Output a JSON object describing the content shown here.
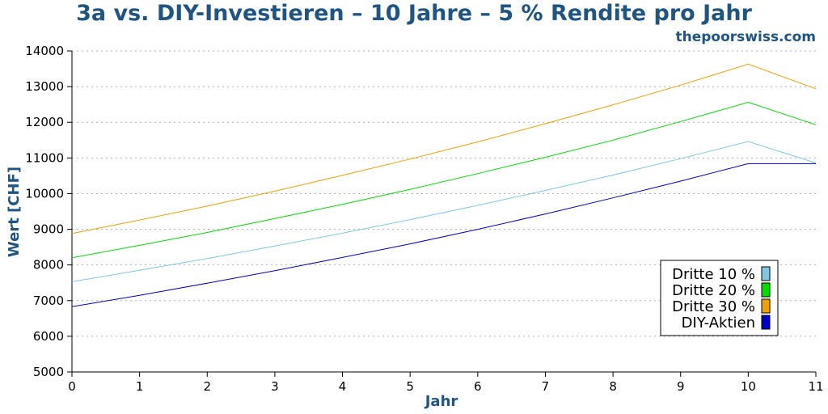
{
  "chart_data": {
    "type": "line",
    "title": "3a vs. DIY-Investieren – 10 Jahre – 5 % Rendite pro Jahr",
    "subtitle": "thepoorswiss.com",
    "xlabel": "Jahr",
    "ylabel": "Wert [CHF]",
    "x": [
      0,
      1,
      2,
      3,
      4,
      5,
      6,
      7,
      8,
      9,
      10,
      11
    ],
    "xlim": [
      0,
      11
    ],
    "ylim": [
      5000,
      14000
    ],
    "xticks": [
      "0",
      "1",
      "2",
      "3",
      "4",
      "5",
      "6",
      "7",
      "8",
      "9",
      "10",
      "11"
    ],
    "yticks": [
      "5000",
      "6000",
      "7000",
      "8000",
      "9000",
      "10000",
      "11000",
      "12000",
      "13000",
      "14000"
    ],
    "grid": "horizontal-dotted",
    "legend_position": "lower-right",
    "title_color": "#1f5582",
    "series": [
      {
        "name": "Dritte 10 %",
        "color": "#7ec8e3",
        "values": [
          7530,
          7850,
          8180,
          8530,
          8890,
          9270,
          9670,
          10090,
          10520,
          10980,
          11460,
          10860
        ]
      },
      {
        "name": "Dritte 20 %",
        "color": "#00dd00",
        "values": [
          8200,
          8550,
          8910,
          9300,
          9700,
          10120,
          10560,
          11020,
          11500,
          12020,
          12560,
          11930
        ]
      },
      {
        "name": "Dritte 30 %",
        "color": "#f0a000",
        "values": [
          8880,
          9260,
          9650,
          10070,
          10510,
          10970,
          11450,
          11960,
          12490,
          13040,
          13630,
          12940
        ]
      },
      {
        "name": "DIY-Aktien",
        "color": "#0000cc",
        "values": [
          6830,
          7150,
          7490,
          7840,
          8210,
          8590,
          9000,
          9430,
          9880,
          10350,
          10840,
          10840
        ]
      }
    ]
  }
}
